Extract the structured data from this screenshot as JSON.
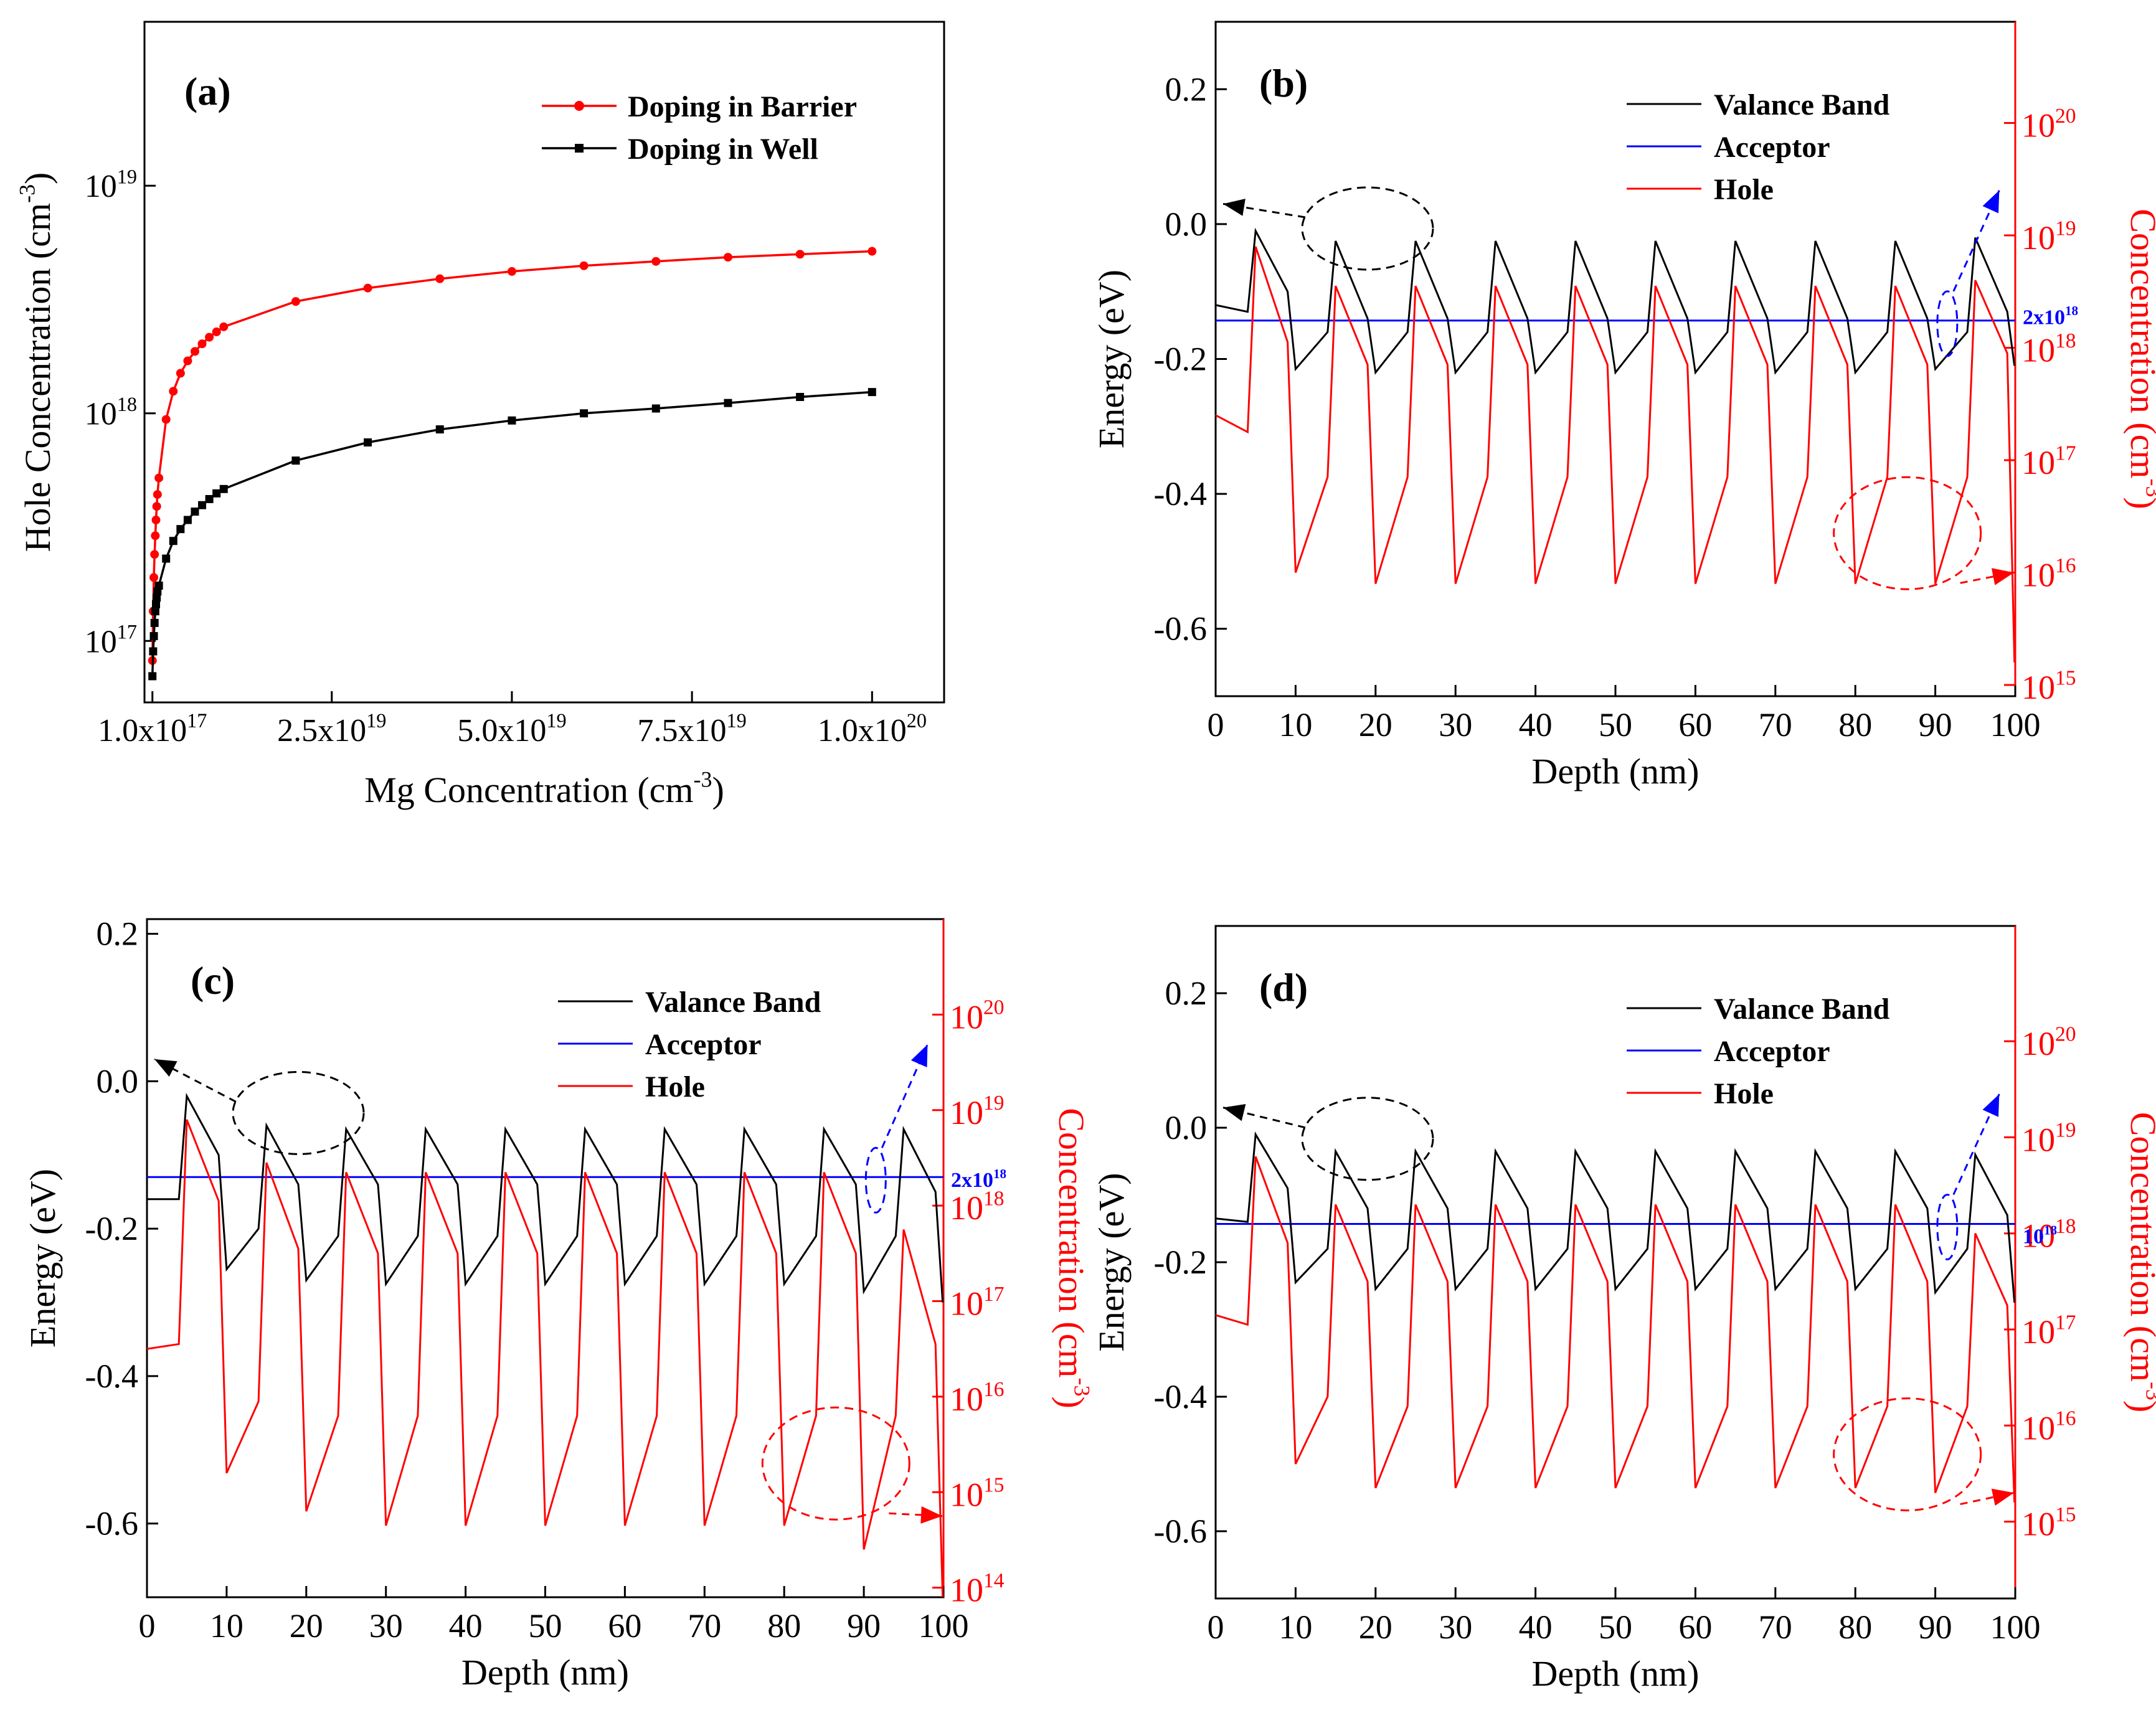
{
  "colors": {
    "black": "#000000",
    "red": "#ff0000",
    "blue": "#0000ff"
  },
  "chart_data": [
    {
      "id": "a",
      "type": "line",
      "panel_label": "(a)",
      "xlabel": "Mg Concentration (cm",
      "xlabel_sup": "-3",
      "xlabel_tail": ")",
      "ylabel": "Hole Concentration (cm",
      "ylabel_sup": "-3",
      "ylabel_tail": ")",
      "ylog": true,
      "xlim": [
        -1e+18,
        1.1e+20
      ],
      "ylim_log10": [
        16.73,
        19.72
      ],
      "x_ticks": [
        {
          "value": 1e+17,
          "base": "1.0x10",
          "exp": "17"
        },
        {
          "value": 2.5e+19,
          "base": "2.5x10",
          "exp": "19"
        },
        {
          "value": 5e+19,
          "base": "5.0x10",
          "exp": "19"
        },
        {
          "value": 7.5e+19,
          "base": "7.5x10",
          "exp": "19"
        },
        {
          "value": 1e+20,
          "base": "1.0x10",
          "exp": "20"
        }
      ],
      "y_ticks": [
        {
          "log10": 17,
          "base": "10",
          "exp": "17"
        },
        {
          "log10": 18,
          "base": "10",
          "exp": "18"
        },
        {
          "log10": 19,
          "base": "10",
          "exp": "19"
        }
      ],
      "legend_position": "top-right",
      "series": [
        {
          "name": "Doping in Barrier",
          "color": "#ff0000",
          "marker": "circle",
          "x": [
            1e+17,
            2e+17,
            3e+17,
            4e+17,
            5e+17,
            6e+17,
            7e+17,
            8e+17,
            1e+18,
            2e+18,
            3e+18,
            4e+18,
            5e+18,
            6e+18,
            7e+18,
            8e+18,
            9e+18,
            1e+19,
            2e+19,
            3e+19,
            4e+19,
            5e+19,
            6e+19,
            7e+19,
            8e+19,
            9e+19,
            1e+20
          ],
          "y": [
            8.2e+16,
            1.35e+17,
            1.9e+17,
            2.4e+17,
            2.9e+17,
            3.4e+17,
            3.9e+17,
            4.4e+17,
            5.2e+17,
            9.4e+17,
            1.25e+18,
            1.5e+18,
            1.7e+18,
            1.87e+18,
            2.02e+18,
            2.16e+18,
            2.28e+18,
            2.4e+18,
            3.1e+18,
            3.55e+18,
            3.9e+18,
            4.2e+18,
            4.45e+18,
            4.65e+18,
            4.85e+18,
            5e+18,
            5.15e+18
          ]
        },
        {
          "name": "Doping in Well",
          "color": "#000000",
          "marker": "square",
          "x": [
            1e+17,
            2e+17,
            3e+17,
            4e+17,
            5e+17,
            6e+17,
            7e+17,
            8e+17,
            1e+18,
            2e+18,
            3e+18,
            4e+18,
            5e+18,
            6e+18,
            7e+18,
            8e+18,
            9e+18,
            1e+19,
            2e+19,
            3e+19,
            4e+19,
            5e+19,
            6e+19,
            7e+19,
            8e+19,
            9e+19,
            1e+20
          ],
          "y": [
            7e+16,
            9e+16,
            1.05e+17,
            1.2e+17,
            1.35e+17,
            1.45e+17,
            1.55e+17,
            1.65e+17,
            1.75e+17,
            2.3e+17,
            2.75e+17,
            3.1e+17,
            3.4e+17,
            3.7e+17,
            3.95e+17,
            4.2e+17,
            4.45e+17,
            4.65e+17,
            6.2e+17,
            7.45e+17,
            8.5e+17,
            9.3e+17,
            1e+18,
            1.05e+18,
            1.11e+18,
            1.18e+18,
            1.24e+18
          ]
        }
      ]
    },
    {
      "id": "b",
      "type": "line",
      "panel_label": "(b)",
      "xlabel": "Depth (nm)",
      "ylabel": "Energy (eV)",
      "ylabel_right": "Concentration (cm",
      "ylabel_right_sup": "-3",
      "ylabel_right_tail": ")",
      "xlim": [
        0,
        100
      ],
      "ylim": [
        -0.7,
        0.3
      ],
      "ylim_right_log10": [
        14.9,
        20.9
      ],
      "x_ticks": [
        0,
        10,
        20,
        30,
        40,
        50,
        60,
        70,
        80,
        90,
        100
      ],
      "y_ticks": [
        "0.2",
        "0.0",
        "-0.2",
        "-0.4",
        "-0.6"
      ],
      "y_right_ticks": [
        {
          "log10": 15,
          "base": "10",
          "exp": "15"
        },
        {
          "log10": 16,
          "base": "10",
          "exp": "16"
        },
        {
          "log10": 17,
          "base": "10",
          "exp": "17"
        },
        {
          "log10": 18,
          "base": "10",
          "exp": "18"
        },
        {
          "log10": 19,
          "base": "10",
          "exp": "19"
        },
        {
          "log10": 20,
          "base": "10",
          "exp": "20"
        }
      ],
      "legend_position": "top-right",
      "legend": [
        "Valance Band",
        "Acceptor",
        "Hole"
      ],
      "acceptor_label": {
        "base": "2x10",
        "exp": "18"
      },
      "acceptor_log10": 18.3,
      "valence_band": {
        "start": -0.12,
        "well_end": -0.13,
        "peaks": [
          -0.01,
          -0.025,
          -0.025,
          -0.025,
          -0.025,
          -0.025,
          -0.025,
          -0.025,
          -0.025,
          -0.02
        ],
        "barrier_end": [
          -0.1,
          -0.14,
          -0.14,
          -0.14,
          -0.14,
          -0.14,
          -0.14,
          -0.14,
          -0.14,
          -0.13
        ],
        "troughs": [
          -0.215,
          -0.22,
          -0.22,
          -0.22,
          -0.22,
          -0.22,
          -0.22,
          -0.22,
          -0.215
        ],
        "well_top": [
          -0.16,
          -0.16,
          -0.16,
          -0.16,
          -0.16,
          -0.16,
          -0.16,
          -0.16,
          -0.16
        ],
        "end": -0.21
      },
      "acceptor_energy": -0.143,
      "hole_log10": {
        "start": 17.4,
        "well_end": 17.25,
        "peaks": [
          18.9,
          18.55,
          18.55,
          18.55,
          18.55,
          18.55,
          18.55,
          18.55,
          18.55,
          18.6
        ],
        "barrier_end": [
          18.05,
          17.85,
          17.85,
          17.85,
          17.85,
          17.85,
          17.85,
          17.85,
          17.85,
          17.95
        ],
        "troughs": [
          16.0,
          15.9,
          15.9,
          15.9,
          15.9,
          15.9,
          15.9,
          15.9,
          15.9
        ],
        "well_top": [
          16.85,
          16.85,
          16.85,
          16.85,
          16.85,
          16.85,
          16.85,
          16.85,
          16.85
        ],
        "end": 15.2
      }
    },
    {
      "id": "c",
      "type": "line",
      "panel_label": "(c)",
      "xlabel": "Depth (nm)",
      "ylabel": "Energy (eV)",
      "ylabel_right": "Concentration (cm",
      "ylabel_right_sup": "-3",
      "ylabel_right_tail": ")",
      "xlim": [
        0,
        100
      ],
      "ylim": [
        -0.7,
        0.22
      ],
      "ylim_right_log10": [
        13.9,
        21.0
      ],
      "x_ticks": [
        0,
        10,
        20,
        30,
        40,
        50,
        60,
        70,
        80,
        90,
        100
      ],
      "y_ticks": [
        "0.2",
        "0.0",
        "-0.2",
        "-0.4",
        "-0.6"
      ],
      "y_right_ticks": [
        {
          "log10": 14,
          "base": "10",
          "exp": "14"
        },
        {
          "log10": 15,
          "base": "10",
          "exp": "15"
        },
        {
          "log10": 16,
          "base": "10",
          "exp": "16"
        },
        {
          "log10": 17,
          "base": "10",
          "exp": "17"
        },
        {
          "log10": 18,
          "base": "10",
          "exp": "18"
        },
        {
          "log10": 19,
          "base": "10",
          "exp": "19"
        },
        {
          "log10": 20,
          "base": "10",
          "exp": "20"
        }
      ],
      "legend_position": "top-right",
      "legend": [
        "Valance Band",
        "Acceptor",
        "Hole"
      ],
      "acceptor_label": {
        "base": "2x10",
        "exp": "18"
      },
      "acceptor_log10": 18.3,
      "valence_band": {
        "start": -0.16,
        "well_end": -0.16,
        "peaks": [
          -0.02,
          -0.06,
          -0.065,
          -0.065,
          -0.065,
          -0.065,
          -0.065,
          -0.065,
          -0.065,
          -0.065
        ],
        "barrier_end": [
          -0.1,
          -0.14,
          -0.14,
          -0.14,
          -0.14,
          -0.14,
          -0.14,
          -0.14,
          -0.14,
          -0.15
        ],
        "troughs": [
          -0.255,
          -0.27,
          -0.275,
          -0.275,
          -0.275,
          -0.275,
          -0.275,
          -0.275,
          -0.285
        ],
        "well_top": [
          -0.2,
          -0.21,
          -0.21,
          -0.21,
          -0.21,
          -0.21,
          -0.21,
          -0.21,
          -0.21
        ],
        "end": -0.3
      },
      "acceptor_energy": -0.13,
      "hole_log10": {
        "start": 16.5,
        "well_end": 16.55,
        "peaks": [
          18.9,
          18.45,
          18.35,
          18.35,
          18.35,
          18.35,
          18.35,
          18.35,
          18.35,
          17.75
        ],
        "barrier_end": [
          18.05,
          17.55,
          17.5,
          17.5,
          17.5,
          17.5,
          17.5,
          17.5,
          17.5,
          16.55
        ],
        "troughs": [
          15.2,
          14.8,
          14.65,
          14.65,
          14.65,
          14.65,
          14.65,
          14.65,
          14.4
        ],
        "well_top": [
          15.95,
          15.8,
          15.8,
          15.8,
          15.8,
          15.8,
          15.8,
          15.8,
          15.8
        ],
        "end": 13.9
      }
    },
    {
      "id": "d",
      "type": "line",
      "panel_label": "(d)",
      "xlabel": "Depth (nm)",
      "ylabel": "Energy (eV)",
      "ylabel_right": "Concentration (cm",
      "ylabel_right_sup": "-3",
      "ylabel_right_tail": ")",
      "xlim": [
        0,
        100
      ],
      "ylim": [
        -0.7,
        0.3
      ],
      "ylim_right_log10": [
        14.2,
        21.2
      ],
      "x_ticks": [
        0,
        10,
        20,
        30,
        40,
        50,
        60,
        70,
        80,
        90,
        100
      ],
      "y_ticks": [
        "0.2",
        "0.0",
        "-0.2",
        "-0.4",
        "-0.6"
      ],
      "y_right_ticks": [
        {
          "log10": 15,
          "base": "10",
          "exp": "15"
        },
        {
          "log10": 16,
          "base": "10",
          "exp": "16"
        },
        {
          "log10": 17,
          "base": "10",
          "exp": "17"
        },
        {
          "log10": 18,
          "base": "10",
          "exp": "18"
        },
        {
          "log10": 19,
          "base": "10",
          "exp": "19"
        },
        {
          "log10": 20,
          "base": "10",
          "exp": "20"
        }
      ],
      "legend_position": "top-right",
      "legend": [
        "Valance Band",
        "Acceptor",
        "Hole"
      ],
      "acceptor_label": {
        "base": "10",
        "exp": "18"
      },
      "acceptor_log10": 18.0,
      "valence_band": {
        "start": -0.135,
        "well_end": -0.14,
        "peaks": [
          -0.01,
          -0.035,
          -0.035,
          -0.035,
          -0.035,
          -0.035,
          -0.035,
          -0.035,
          -0.035,
          -0.04
        ],
        "barrier_end": [
          -0.09,
          -0.12,
          -0.12,
          -0.12,
          -0.12,
          -0.12,
          -0.12,
          -0.12,
          -0.12,
          -0.13
        ],
        "troughs": [
          -0.23,
          -0.24,
          -0.24,
          -0.24,
          -0.24,
          -0.24,
          -0.24,
          -0.24,
          -0.245
        ],
        "well_top": [
          -0.18,
          -0.18,
          -0.18,
          -0.18,
          -0.18,
          -0.18,
          -0.18,
          -0.18,
          -0.18
        ],
        "end": -0.26
      },
      "acceptor_energy": -0.143,
      "hole_log10": {
        "start": 17.15,
        "well_end": 17.05,
        "peaks": [
          18.8,
          18.3,
          18.3,
          18.3,
          18.3,
          18.3,
          18.3,
          18.3,
          18.3,
          18.0
        ],
        "barrier_end": [
          17.9,
          17.5,
          17.5,
          17.5,
          17.5,
          17.5,
          17.5,
          17.5,
          17.5,
          17.25
        ],
        "troughs": [
          15.6,
          15.35,
          15.35,
          15.35,
          15.35,
          15.35,
          15.35,
          15.35,
          15.3
        ],
        "well_top": [
          16.3,
          16.2,
          16.2,
          16.2,
          16.2,
          16.2,
          16.2,
          16.2,
          16.2
        ],
        "end": 15.2
      }
    }
  ]
}
